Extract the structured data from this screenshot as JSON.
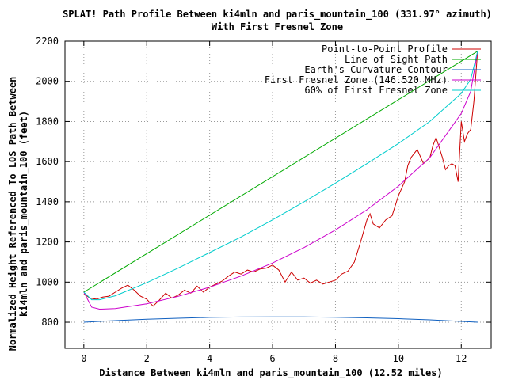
{
  "chart_data": {
    "type": "line",
    "title_line1": "SPLAT! Path Profile Between ki4mln and paris_mountain_100 (331.97° azimuth)",
    "title_line2": "With First Fresnel Zone",
    "xlabel": "Distance Between ki4mln and paris_mountain_100 (12.52 miles)",
    "ylabel_line1": "Normalized Height Referenced To LOS Path Between",
    "ylabel_line2": "ki4mln and paris_mountain_100 (feet)",
    "xlim": [
      -0.6,
      12.95
    ],
    "ylim": [
      670,
      2200
    ],
    "x_ticks": [
      0,
      2,
      4,
      6,
      8,
      10,
      12
    ],
    "x_tick_labels": [
      "0",
      "2",
      "4",
      "6",
      "8",
      "10",
      "12"
    ],
    "y_ticks": [
      800,
      1000,
      1200,
      1400,
      1600,
      1800,
      2000,
      2200
    ],
    "y_tick_labels": [
      "800",
      "1000",
      "1200",
      "1400",
      "1600",
      "1800",
      "2000",
      "2200"
    ],
    "grid": true,
    "legend_position": "top-right",
    "series": [
      {
        "name": "Point-to-Point Profile",
        "color": "#cc0000",
        "x": [
          0,
          0.2,
          0.4,
          0.6,
          0.8,
          1.0,
          1.2,
          1.4,
          1.6,
          1.8,
          2.0,
          2.2,
          2.4,
          2.6,
          2.8,
          3.0,
          3.2,
          3.4,
          3.6,
          3.8,
          4.0,
          4.2,
          4.4,
          4.6,
          4.8,
          5.0,
          5.2,
          5.4,
          5.6,
          5.8,
          6.0,
          6.2,
          6.4,
          6.6,
          6.8,
          7.0,
          7.2,
          7.4,
          7.6,
          7.8,
          8.0,
          8.2,
          8.4,
          8.6,
          8.8,
          9.0,
          9.1,
          9.2,
          9.4,
          9.6,
          9.8,
          10.0,
          10.2,
          10.3,
          10.4,
          10.6,
          10.8,
          11.0,
          11.1,
          11.2,
          11.4,
          11.5,
          11.6,
          11.7,
          11.8,
          11.9,
          12.0,
          12.1,
          12.2,
          12.3,
          12.4,
          12.52
        ],
        "y": [
          940,
          920,
          915,
          925,
          930,
          950,
          970,
          985,
          960,
          930,
          915,
          880,
          910,
          945,
          920,
          935,
          960,
          945,
          980,
          950,
          975,
          990,
          1005,
          1030,
          1050,
          1040,
          1060,
          1050,
          1065,
          1070,
          1085,
          1060,
          1000,
          1050,
          1010,
          1020,
          995,
          1010,
          990,
          1000,
          1010,
          1040,
          1055,
          1100,
          1200,
          1310,
          1340,
          1290,
          1270,
          1310,
          1330,
          1430,
          1500,
          1580,
          1620,
          1660,
          1590,
          1620,
          1680,
          1720,
          1620,
          1560,
          1580,
          1590,
          1580,
          1500,
          1800,
          1700,
          1740,
          1760,
          1900,
          2150
        ]
      },
      {
        "name": "Line of Sight Path",
        "color": "#00aa00",
        "x": [
          0,
          12.52
        ],
        "y": [
          950,
          2150
        ]
      },
      {
        "name": "Earth's Curvature Contour",
        "color": "#1060c0",
        "x": [
          0,
          1,
          2,
          3,
          4,
          5,
          6,
          6.26,
          7,
          8,
          9,
          10,
          11,
          12,
          12.52
        ],
        "y": [
          800,
          808,
          815,
          820,
          824,
          826,
          827,
          827,
          827,
          825,
          822,
          818,
          812,
          804,
          800
        ]
      },
      {
        "name": "First Fresnel Zone (146.520 MHz)",
        "color": "#cc00cc",
        "x": [
          0,
          0.25,
          0.5,
          1,
          2,
          3,
          4,
          5,
          6,
          7,
          8,
          9,
          10,
          11,
          12,
          12.3,
          12.52
        ],
        "y": [
          950,
          875,
          865,
          868,
          892,
          929,
          975,
          1030,
          1095,
          1172,
          1260,
          1360,
          1478,
          1620,
          1840,
          1950,
          2150
        ]
      },
      {
        "name": "60% of First Fresnel Zone",
        "color": "#00cccc",
        "x": [
          0,
          0.25,
          0.5,
          1,
          2,
          3,
          4,
          5,
          6,
          7,
          8,
          9,
          10,
          11,
          12,
          12.3,
          12.52
        ],
        "y": [
          950,
          912,
          912,
          932,
          997,
          1070,
          1147,
          1225,
          1310,
          1400,
          1493,
          1590,
          1690,
          1800,
          1940,
          2010,
          2150
        ]
      }
    ]
  }
}
